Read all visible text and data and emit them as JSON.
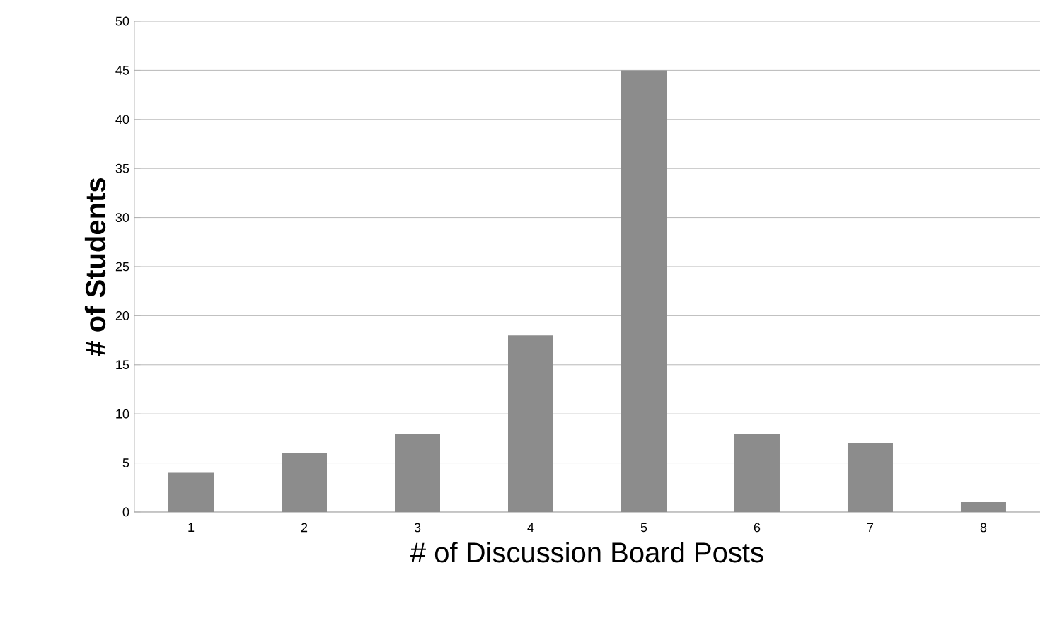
{
  "chart_data": {
    "type": "bar",
    "xlabel": "# of Discussion Board Posts",
    "ylabel": "# of Students",
    "categories": [
      "1",
      "2",
      "3",
      "4",
      "5",
      "6",
      "7",
      "8"
    ],
    "values": [
      4,
      6,
      8,
      18,
      45,
      8,
      7,
      1
    ],
    "color": "#8c8c8c",
    "ylim": [
      0,
      50
    ],
    "yticks": [
      0,
      5,
      10,
      15,
      20,
      25,
      30,
      35,
      40,
      45,
      50
    ],
    "grid": "y"
  }
}
